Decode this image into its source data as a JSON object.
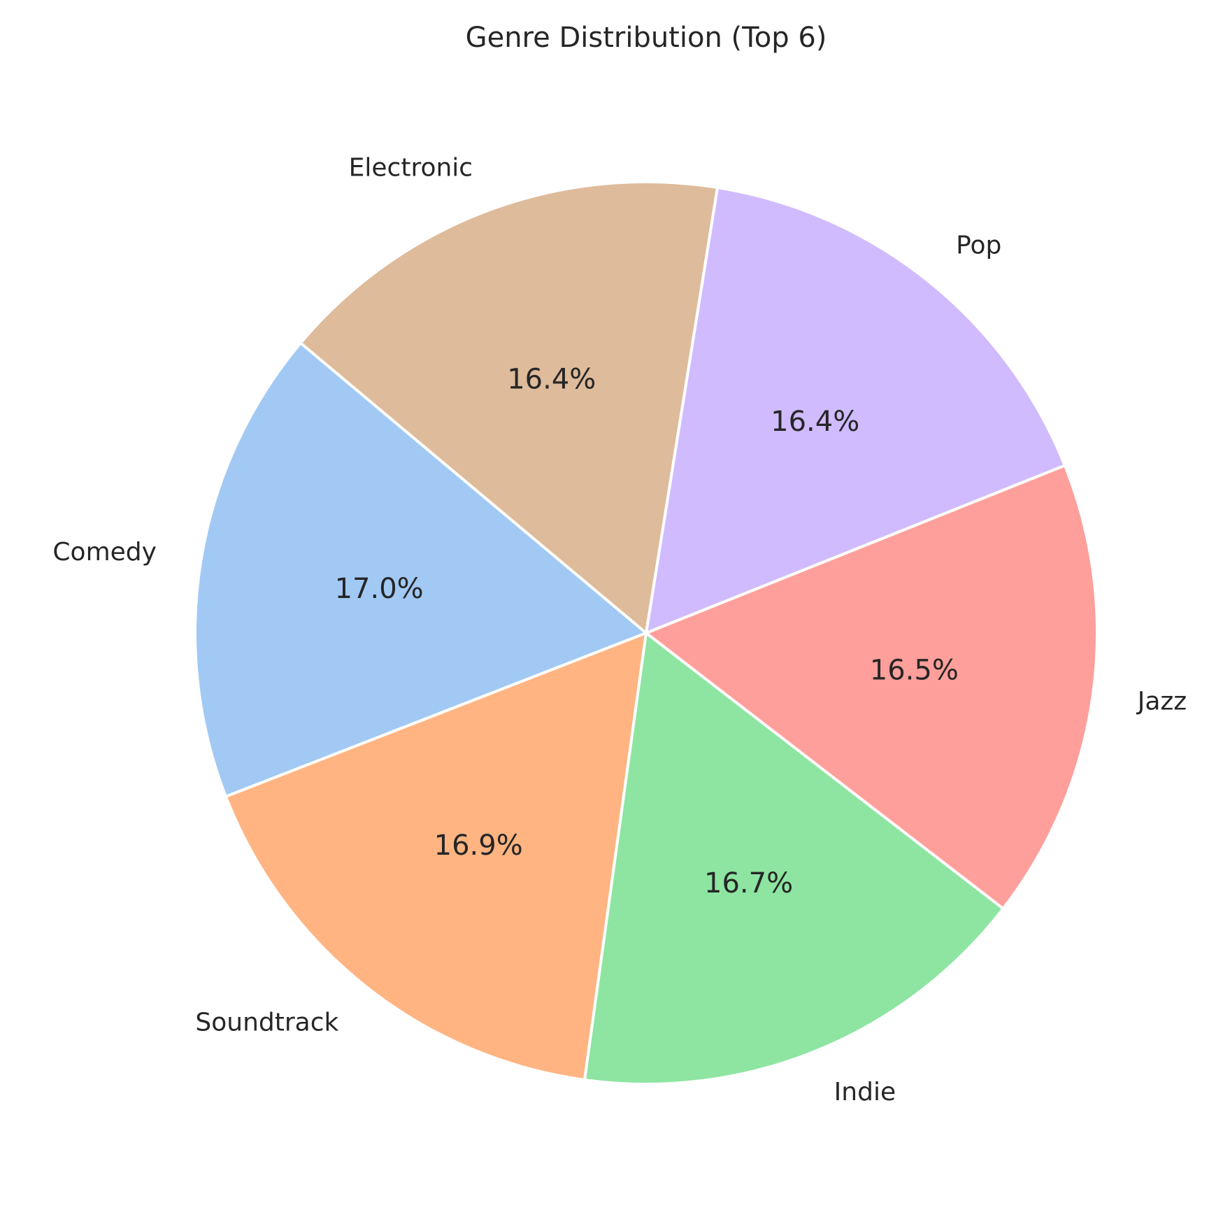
{
  "chart_data": {
    "type": "pie",
    "title": "Genre Distribution (Top 6)",
    "labels": [
      "Comedy",
      "Soundtrack",
      "Indie",
      "Jazz",
      "Pop",
      "Electronic"
    ],
    "values": [
      17.0,
      16.9,
      16.7,
      16.5,
      16.4,
      16.4
    ],
    "value_labels": [
      "17.0%",
      "16.9%",
      "16.7%",
      "16.5%",
      "16.4%",
      "16.4%"
    ],
    "colors": [
      "#a1c9f4",
      "#ffb482",
      "#8de5a1",
      "#ff9f9b",
      "#d0bbff",
      "#debb9b"
    ],
    "start_angle_deg": 140,
    "direction": "counterclockwise",
    "edge_color": "#ffffff"
  }
}
